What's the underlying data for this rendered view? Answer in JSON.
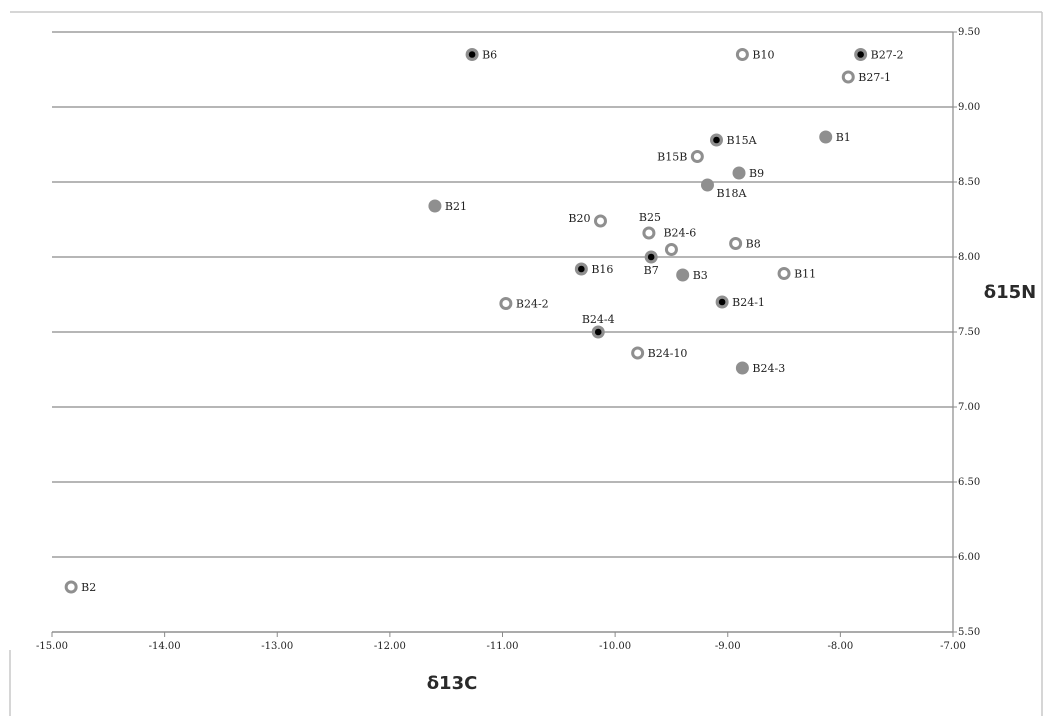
{
  "chart_data": {
    "type": "scatter",
    "xlabel": "δ13C",
    "ylabel": "δ15N",
    "xlim": [
      -15,
      -7
    ],
    "ylim": [
      5.5,
      9.5
    ],
    "x_ticks": [
      "-15.00",
      "-14.00",
      "-13.00",
      "-12.00",
      "-11.00",
      "-10.00",
      "-9.00",
      "-8.00",
      "-7.00"
    ],
    "y_ticks": [
      "9.50",
      "9.00",
      "8.50",
      "8.00",
      "7.50",
      "7.00",
      "6.50",
      "6.00",
      "5.50"
    ],
    "grid": "horizontal",
    "y_axis_side": "right",
    "marker_styles": {
      "filled": "grey filled circle",
      "open": "grey ring with white centre",
      "dot": "grey circle with black centre dot"
    },
    "colors": {
      "marker_grey": "#8f8f8f",
      "marker_dot": "#000000",
      "grid": "#8a8a8a"
    },
    "points": [
      {
        "label": "B6",
        "x": -11.27,
        "y": 9.35,
        "style": "dot"
      },
      {
        "label": "B10",
        "x": -8.87,
        "y": 9.35,
        "style": "open"
      },
      {
        "label": "B27-2",
        "x": -7.82,
        "y": 9.35,
        "style": "dot"
      },
      {
        "label": "B27-1",
        "x": -7.93,
        "y": 9.2,
        "style": "open"
      },
      {
        "label": "B1",
        "x": -8.13,
        "y": 8.8,
        "style": "filled"
      },
      {
        "label": "B15A",
        "x": -9.1,
        "y": 8.78,
        "style": "dot"
      },
      {
        "label": "B15B",
        "x": -9.27,
        "y": 8.67,
        "style": "open"
      },
      {
        "label": "B9",
        "x": -8.9,
        "y": 8.56,
        "style": "filled"
      },
      {
        "label": "B18A",
        "x": -9.18,
        "y": 8.48,
        "style": "filled"
      },
      {
        "label": "B21",
        "x": -11.6,
        "y": 8.34,
        "style": "filled"
      },
      {
        "label": "B20",
        "x": -10.13,
        "y": 8.24,
        "style": "open"
      },
      {
        "label": "B25",
        "x": -9.7,
        "y": 8.16,
        "style": "open"
      },
      {
        "label": "B24-6",
        "x": -9.5,
        "y": 8.05,
        "style": "open"
      },
      {
        "label": "B8",
        "x": -8.93,
        "y": 8.09,
        "style": "open"
      },
      {
        "label": "B7",
        "x": -9.68,
        "y": 8.0,
        "style": "dot"
      },
      {
        "label": "B16",
        "x": -10.3,
        "y": 7.92,
        "style": "dot"
      },
      {
        "label": "B3",
        "x": -9.4,
        "y": 7.88,
        "style": "filled"
      },
      {
        "label": "B11",
        "x": -8.5,
        "y": 7.89,
        "style": "open"
      },
      {
        "label": "B24-2",
        "x": -10.97,
        "y": 7.69,
        "style": "open"
      },
      {
        "label": "B24-1",
        "x": -9.05,
        "y": 7.7,
        "style": "dot"
      },
      {
        "label": "B24-4",
        "x": -10.15,
        "y": 7.5,
        "style": "dot"
      },
      {
        "label": "B24-10",
        "x": -9.8,
        "y": 7.36,
        "style": "open"
      },
      {
        "label": "B24-3",
        "x": -8.87,
        "y": 7.26,
        "style": "filled"
      },
      {
        "label": "B2",
        "x": -14.83,
        "y": 5.8,
        "style": "open"
      }
    ]
  }
}
